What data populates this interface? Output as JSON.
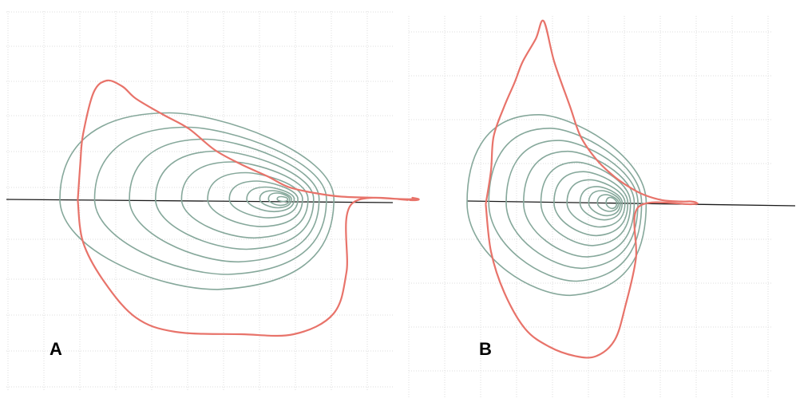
{
  "chart_data": [
    {
      "type": "line",
      "panel_label": "A",
      "grid": true,
      "envelope_color": "#e8736a",
      "loop_color": "#86a89b",
      "baseline_color": "#1a1a1a",
      "envelope": [
        [
          -0.42,
          0
        ],
        [
          -0.41,
          0.32
        ],
        [
          -0.4,
          0.55
        ],
        [
          -0.36,
          0.9
        ],
        [
          -0.31,
          1.0
        ],
        [
          -0.25,
          0.95
        ],
        [
          -0.2,
          0.85
        ],
        [
          -0.1,
          0.72
        ],
        [
          0.0,
          0.6
        ],
        [
          0.1,
          0.42
        ],
        [
          0.2,
          0.3
        ],
        [
          0.3,
          0.2
        ],
        [
          0.38,
          0.11
        ],
        [
          0.48,
          0.06
        ],
        [
          0.58,
          0.03
        ],
        [
          0.72,
          0.02
        ],
        [
          0.8,
          0.01
        ],
        [
          0.86,
          0.01
        ],
        [
          0.85,
          0.02
        ],
        [
          0.86,
          0.0
        ],
        [
          0.62,
          -0.03
        ],
        [
          0.6,
          -0.6
        ],
        [
          0.55,
          -0.95
        ],
        [
          0.4,
          -1.12
        ],
        [
          0.2,
          -1.12
        ],
        [
          -0.05,
          -1.1
        ],
        [
          -0.2,
          -0.98
        ],
        [
          -0.32,
          -0.68
        ],
        [
          -0.4,
          -0.35
        ],
        [
          -0.42,
          0
        ]
      ],
      "loop_center": [
        0.37,
        0.01
      ],
      "loops": [
        [
          0.52,
          0.72
        ],
        [
          0.44,
          0.6
        ],
        [
          0.36,
          0.5
        ],
        [
          0.3,
          0.4
        ],
        [
          0.24,
          0.31
        ],
        [
          0.18,
          0.22
        ],
        [
          0.13,
          0.15
        ],
        [
          0.09,
          0.1
        ],
        [
          0.06,
          0.07
        ],
        [
          0.04,
          0.05
        ],
        [
          0.02,
          0.02
        ]
      ],
      "xlim": [
        -0.6,
        1.2
      ],
      "ylim": [
        -1.25,
        1.25
      ]
    },
    {
      "type": "line",
      "panel_label": "B",
      "grid": true,
      "envelope_color": "#e8736a",
      "loop_color": "#86a89b",
      "baseline_color": "#1a1a1a",
      "envelope": [
        [
          -0.22,
          0
        ],
        [
          -0.2,
          0.25
        ],
        [
          -0.19,
          0.5
        ],
        [
          -0.15,
          0.72
        ],
        [
          -0.11,
          0.9
        ],
        [
          -0.08,
          1.05
        ],
        [
          -0.03,
          1.22
        ],
        [
          0.0,
          1.35
        ],
        [
          0.04,
          1.05
        ],
        [
          0.1,
          0.72
        ],
        [
          0.14,
          0.5
        ],
        [
          0.2,
          0.33
        ],
        [
          0.27,
          0.2
        ],
        [
          0.33,
          0.12
        ],
        [
          0.38,
          0.07
        ],
        [
          0.45,
          0.03
        ],
        [
          0.52,
          0.02
        ],
        [
          0.56,
          0.02
        ],
        [
          0.58,
          0.01
        ],
        [
          0.56,
          0.0
        ],
        [
          0.36,
          -0.02
        ],
        [
          0.35,
          -0.4
        ],
        [
          0.31,
          -0.75
        ],
        [
          0.27,
          -1.0
        ],
        [
          0.2,
          -1.12
        ],
        [
          0.12,
          -1.12
        ],
        [
          0.02,
          -1.05
        ],
        [
          -0.07,
          -0.92
        ],
        [
          -0.15,
          -0.65
        ],
        [
          -0.2,
          -0.35
        ],
        [
          -0.22,
          0
        ]
      ],
      "loop_center": [
        0.27,
        0.01
      ],
      "loops": [
        [
          0.34,
          0.65
        ],
        [
          0.29,
          0.55
        ],
        [
          0.25,
          0.46
        ],
        [
          0.21,
          0.38
        ],
        [
          0.17,
          0.3
        ],
        [
          0.14,
          0.23
        ],
        [
          0.11,
          0.17
        ],
        [
          0.08,
          0.12
        ],
        [
          0.06,
          0.09
        ],
        [
          0.04,
          0.06
        ],
        [
          0.02,
          0.04
        ]
      ],
      "xlim": [
        -0.5,
        0.8
      ],
      "ylim": [
        -1.2,
        1.45
      ]
    }
  ]
}
